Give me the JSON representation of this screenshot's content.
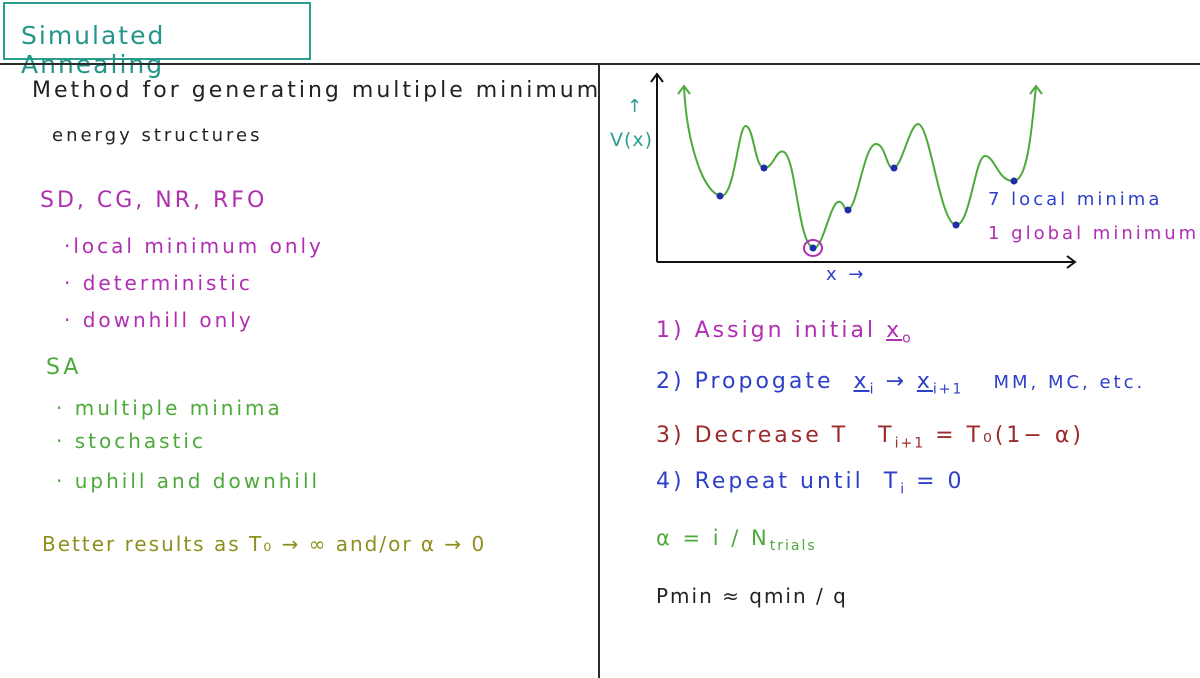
{
  "title": "Simulated Annealing",
  "intro": {
    "line1": "Method for generating multiple minimum",
    "line2": "energy structures"
  },
  "deterministic_methods": {
    "heading": "SD, CG, NR, RFO",
    "bullets": [
      "·local minimum only",
      "· deterministic",
      "· downhill only"
    ]
  },
  "sa": {
    "heading": "SA",
    "bullets": [
      "· multiple minima",
      "· stochastic",
      "· uphill and downhill"
    ]
  },
  "better_results": "Better results as T₀ → ∞ and/or α → 0",
  "plot": {
    "y_label": "V(x)",
    "y_arrow": "↑",
    "x_label": "x →",
    "local_minima": "7 local minima",
    "global_minimum": "1 global minimum"
  },
  "steps": {
    "s1": {
      "num": "1)",
      "text": "Assign initial",
      "var": "x",
      "sub": "o"
    },
    "s2": {
      "num": "2)",
      "text": "Propogate",
      "x_i": "x",
      "i_sub": "i",
      "arrow": "→",
      "x_next": "x",
      "next_sub": "i+1",
      "extra": "MM, MC, etc."
    },
    "s3": {
      "num": "3)",
      "text": "Decrease T",
      "formula_lhs": "T",
      "formula_sub": "i+1",
      "formula_rhs": "= T₀(1− α)"
    },
    "s4": {
      "num": "4)",
      "text": "Repeat until",
      "t": "T",
      "t_sub": "i",
      "eq": "= 0"
    }
  },
  "alpha_def": {
    "lhs": "α = i / N",
    "sub": "trials"
  },
  "p_def": "Pmin ≈ qmin / q",
  "colors": {
    "title": "#24958a",
    "magenta": "#b02eb2",
    "green": "#4caa3a",
    "olive": "#8f8f1e",
    "blue": "#2e3fc9",
    "red": "#9c2a2a"
  }
}
